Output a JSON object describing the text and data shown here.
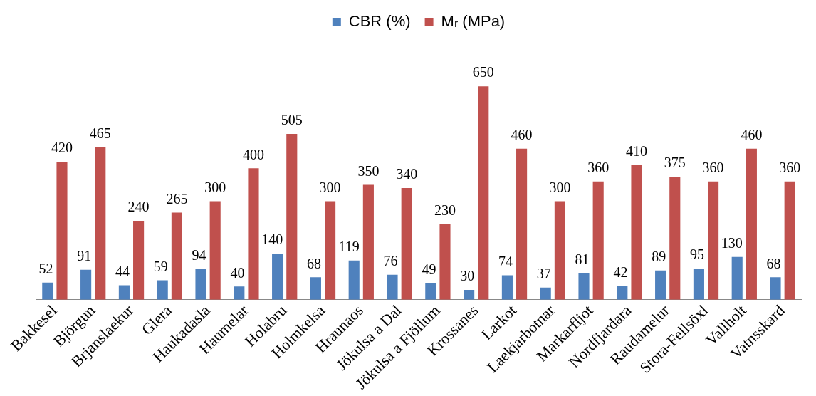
{
  "chart_data": {
    "type": "bar",
    "categories": [
      "Bakkesel",
      "Björgun",
      "Brjanslaekur",
      "Glera",
      "Haukadasla",
      "Haumelar",
      "Holabru",
      "Holmkelsa",
      "Hraunaos",
      "Jökulsa a Dal",
      "Jökulsa a Fjöllum",
      "Krossanes",
      "Larkot",
      "Laekjarbotnar",
      "Markarfljot",
      "Nordfjardara",
      "Raudamelur",
      "Stora-Fellsöxl",
      "Vallholt",
      "Vatnsskard"
    ],
    "series": [
      {
        "name": "CBR (%)",
        "color": "#4f81bd",
        "values": [
          52,
          91,
          44,
          59,
          94,
          40,
          140,
          68,
          119,
          76,
          49,
          30,
          74,
          37,
          81,
          42,
          89,
          95,
          130,
          68
        ]
      },
      {
        "name": "Mᵣ (MPa)",
        "color": "#c0504d",
        "values": [
          420,
          465,
          240,
          265,
          300,
          400,
          505,
          300,
          350,
          340,
          230,
          650,
          460,
          300,
          360,
          410,
          375,
          360,
          460,
          360
        ]
      }
    ],
    "data_labels": true,
    "legend": "top",
    "grid": false
  }
}
